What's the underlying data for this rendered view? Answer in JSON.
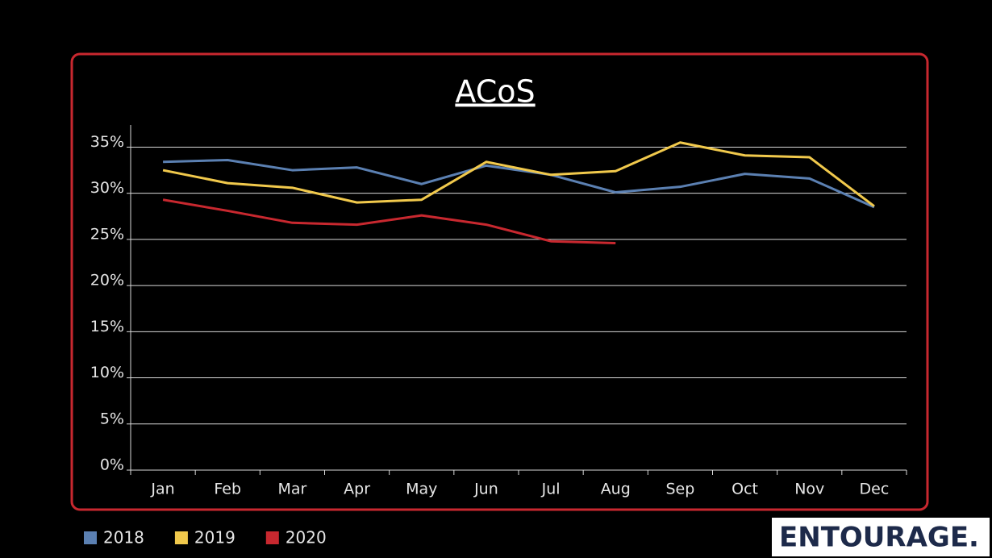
{
  "chart_data": {
    "type": "line",
    "title": "ACoS",
    "categories": [
      "Jan",
      "Feb",
      "Mar",
      "Apr",
      "May",
      "Jun",
      "Jul",
      "Aug",
      "Sep",
      "Oct",
      "Nov",
      "Dec"
    ],
    "series": [
      {
        "name": "2018",
        "color": "#5b80b2",
        "values": [
          33.4,
          33.6,
          32.5,
          32.8,
          31.0,
          33.0,
          32.0,
          30.1,
          30.7,
          32.1,
          31.6,
          28.5
        ]
      },
      {
        "name": "2019",
        "color": "#f1c94c",
        "values": [
          32.5,
          31.1,
          30.6,
          29.0,
          29.3,
          33.4,
          32.0,
          32.4,
          35.5,
          34.1,
          33.9,
          28.6
        ]
      },
      {
        "name": "2020",
        "color": "#c8282f",
        "values": [
          29.3,
          28.1,
          26.8,
          26.6,
          27.6,
          26.6,
          24.8,
          24.6,
          null,
          null,
          null,
          null
        ]
      }
    ],
    "ylim": [
      0,
      37.4
    ],
    "yticks": [
      {
        "value": 0,
        "label": "0%"
      },
      {
        "value": 5,
        "label": "5%"
      },
      {
        "value": 10,
        "label": "10%"
      },
      {
        "value": 15,
        "label": "15%"
      },
      {
        "value": 20,
        "label": "20%"
      },
      {
        "value": 25,
        "label": "25%"
      },
      {
        "value": 30,
        "label": "30%"
      },
      {
        "value": 35,
        "label": "35%"
      }
    ],
    "grid": true,
    "legend": "bottom-left"
  },
  "logo": "ENTOURAGE."
}
